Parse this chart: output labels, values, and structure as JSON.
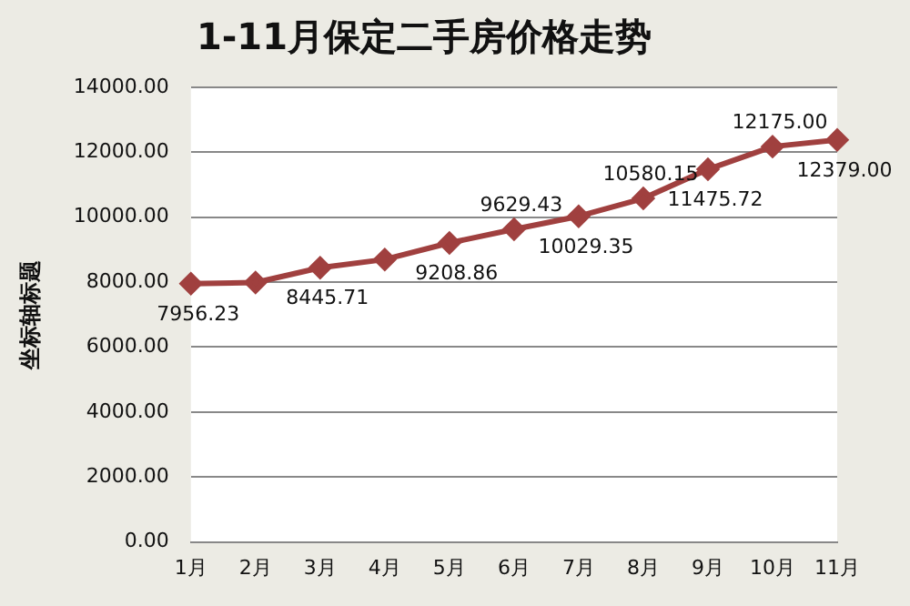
{
  "chart_data": {
    "type": "line",
    "title": "1-11月保定二手房价格走势",
    "ylabel": "坐标轴标题",
    "categories": [
      "1月",
      "2月",
      "3月",
      "4月",
      "5月",
      "6月",
      "7月",
      "8月",
      "9月",
      "10月",
      "11月"
    ],
    "series": [
      {
        "color": "#a0403f",
        "values": [
          7956.23,
          7990,
          8445.71,
          8700,
          9208.86,
          9629.43,
          10029.35,
          10580.15,
          11475.72,
          12175.0,
          12379.0
        ],
        "value_labels": [
          "7956.23",
          null,
          "8445.71",
          null,
          "9208.86",
          "9629.43",
          "10029.35",
          "10580.15",
          "11475.72",
          "12175.00",
          "12379.00"
        ]
      }
    ],
    "ylim": [
      0,
      14000
    ],
    "yticks": [
      {
        "value": 0,
        "label": "0.00"
      },
      {
        "value": 2000,
        "label": "2000.00"
      },
      {
        "value": 4000,
        "label": "4000.00"
      },
      {
        "value": 6000,
        "label": "6000.00"
      },
      {
        "value": 8000,
        "label": "8000.00"
      },
      {
        "value": 10000,
        "label": "10000.00"
      },
      {
        "value": 12000,
        "label": "12000.00"
      },
      {
        "value": 14000,
        "label": "14000.00"
      }
    ],
    "grid": "y",
    "legend": false,
    "marker": "diamond",
    "line_style": "solid"
  }
}
